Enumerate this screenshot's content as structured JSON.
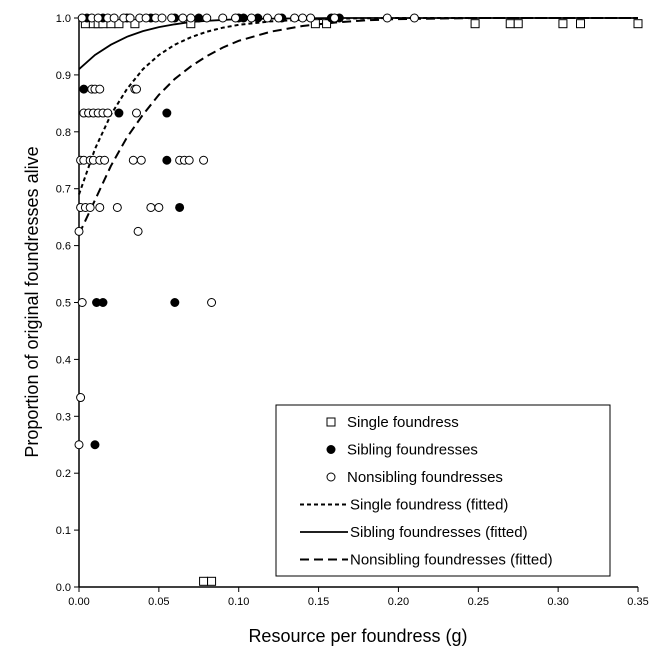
{
  "chart_data": {
    "type": "scatter",
    "title": "",
    "xlabel": "Resource per foundress (g)",
    "ylabel": "Proportion of original foundresses alive",
    "xlim": [
      0,
      0.35
    ],
    "ylim": [
      0,
      1.0
    ],
    "xticks": [
      "0.00",
      "0.05",
      "0.10",
      "0.15",
      "0.20",
      "0.25",
      "0.30",
      "0.35"
    ],
    "yticks": [
      "0.0",
      "0.1",
      "0.2",
      "0.3",
      "0.4",
      "0.5",
      "0.6",
      "0.7",
      "0.8",
      "0.9",
      "1.0"
    ],
    "grid": false,
    "legend_position": "bottom-right",
    "series": [
      {
        "name": "Single foundress",
        "marker": "open-square",
        "points": [
          [
            0.004,
            0.99
          ],
          [
            0.009,
            0.99
          ],
          [
            0.012,
            0.99
          ],
          [
            0.015,
            0.99
          ],
          [
            0.02,
            0.99
          ],
          [
            0.025,
            0.99
          ],
          [
            0.035,
            0.99
          ],
          [
            0.07,
            0.99
          ],
          [
            0.148,
            0.99
          ],
          [
            0.155,
            0.99
          ],
          [
            0.248,
            0.99
          ],
          [
            0.27,
            0.99
          ],
          [
            0.275,
            0.99
          ],
          [
            0.303,
            0.99
          ],
          [
            0.314,
            0.99
          ],
          [
            0.35,
            0.99
          ],
          [
            0.078,
            0.01
          ],
          [
            0.083,
            0.01
          ]
        ]
      },
      {
        "name": "Sibling foundresses",
        "marker": "filled-circle",
        "points": [
          [
            0.005,
            1.0
          ],
          [
            0.015,
            1.0
          ],
          [
            0.03,
            1.0
          ],
          [
            0.045,
            1.0
          ],
          [
            0.06,
            1.0
          ],
          [
            0.075,
            1.0
          ],
          [
            0.1,
            1.0
          ],
          [
            0.103,
            1.0
          ],
          [
            0.112,
            1.0
          ],
          [
            0.127,
            1.0
          ],
          [
            0.158,
            1.0
          ],
          [
            0.163,
            1.0
          ],
          [
            0.003,
            0.875
          ],
          [
            0.055,
            0.833
          ],
          [
            0.025,
            0.833
          ],
          [
            0.055,
            0.75
          ],
          [
            0.063,
            0.667
          ],
          [
            0.011,
            0.5
          ],
          [
            0.015,
            0.5
          ],
          [
            0.06,
            0.5
          ],
          [
            0.01,
            0.25
          ]
        ]
      },
      {
        "name": "Nonsibling foundresses",
        "marker": "open-circle",
        "points": [
          [
            0.002,
            1.0
          ],
          [
            0.008,
            1.0
          ],
          [
            0.012,
            1.0
          ],
          [
            0.018,
            1.0
          ],
          [
            0.022,
            1.0
          ],
          [
            0.028,
            1.0
          ],
          [
            0.032,
            1.0
          ],
          [
            0.038,
            1.0
          ],
          [
            0.042,
            1.0
          ],
          [
            0.048,
            1.0
          ],
          [
            0.052,
            1.0
          ],
          [
            0.058,
            1.0
          ],
          [
            0.065,
            1.0
          ],
          [
            0.07,
            1.0
          ],
          [
            0.08,
            1.0
          ],
          [
            0.09,
            1.0
          ],
          [
            0.098,
            1.0
          ],
          [
            0.108,
            1.0
          ],
          [
            0.118,
            1.0
          ],
          [
            0.125,
            1.0
          ],
          [
            0.135,
            1.0
          ],
          [
            0.14,
            1.0
          ],
          [
            0.145,
            1.0
          ],
          [
            0.16,
            1.0
          ],
          [
            0.193,
            1.0
          ],
          [
            0.21,
            1.0
          ],
          [
            0.008,
            0.875
          ],
          [
            0.01,
            0.875
          ],
          [
            0.013,
            0.875
          ],
          [
            0.035,
            0.875
          ],
          [
            0.036,
            0.875
          ],
          [
            0.003,
            0.833
          ],
          [
            0.006,
            0.833
          ],
          [
            0.009,
            0.833
          ],
          [
            0.012,
            0.833
          ],
          [
            0.015,
            0.833
          ],
          [
            0.018,
            0.833
          ],
          [
            0.036,
            0.833
          ],
          [
            0.001,
            0.75
          ],
          [
            0.003,
            0.75
          ],
          [
            0.007,
            0.75
          ],
          [
            0.009,
            0.75
          ],
          [
            0.013,
            0.75
          ],
          [
            0.016,
            0.75
          ],
          [
            0.034,
            0.75
          ],
          [
            0.039,
            0.75
          ],
          [
            0.063,
            0.75
          ],
          [
            0.066,
            0.75
          ],
          [
            0.069,
            0.75
          ],
          [
            0.078,
            0.75
          ],
          [
            0.001,
            0.667
          ],
          [
            0.004,
            0.667
          ],
          [
            0.007,
            0.667
          ],
          [
            0.013,
            0.667
          ],
          [
            0.024,
            0.667
          ],
          [
            0.045,
            0.667
          ],
          [
            0.05,
            0.667
          ],
          [
            0.0,
            0.625
          ],
          [
            0.037,
            0.625
          ],
          [
            0.002,
            0.5
          ],
          [
            0.083,
            0.5
          ],
          [
            0.001,
            0.333
          ],
          [
            0.0,
            0.25
          ]
        ]
      },
      {
        "name": "Single foundress (fitted)",
        "line": "short-dash",
        "points": [
          [
            0.0,
            0.69
          ],
          [
            0.01,
            0.77
          ],
          [
            0.02,
            0.83
          ],
          [
            0.03,
            0.875
          ],
          [
            0.04,
            0.91
          ],
          [
            0.05,
            0.935
          ],
          [
            0.06,
            0.953
          ],
          [
            0.07,
            0.966
          ],
          [
            0.08,
            0.976
          ],
          [
            0.09,
            0.983
          ],
          [
            0.1,
            0.988
          ],
          [
            0.12,
            0.994
          ],
          [
            0.14,
            0.997
          ],
          [
            0.16,
            0.999
          ],
          [
            0.2,
            1.0
          ],
          [
            0.35,
            1.0
          ]
        ]
      },
      {
        "name": "Sibling foundresses (fitted)",
        "line": "solid",
        "points": [
          [
            0.0,
            0.91
          ],
          [
            0.01,
            0.935
          ],
          [
            0.02,
            0.953
          ],
          [
            0.03,
            0.967
          ],
          [
            0.04,
            0.977
          ],
          [
            0.05,
            0.984
          ],
          [
            0.06,
            0.989
          ],
          [
            0.07,
            0.993
          ],
          [
            0.08,
            0.995
          ],
          [
            0.1,
            0.998
          ],
          [
            0.12,
            0.999
          ],
          [
            0.16,
            1.0
          ],
          [
            0.35,
            1.0
          ]
        ]
      },
      {
        "name": "Nonsibling foundresses (fitted)",
        "line": "long-dash",
        "points": [
          [
            0.0,
            0.62
          ],
          [
            0.01,
            0.68
          ],
          [
            0.02,
            0.74
          ],
          [
            0.03,
            0.79
          ],
          [
            0.04,
            0.83
          ],
          [
            0.05,
            0.865
          ],
          [
            0.06,
            0.893
          ],
          [
            0.07,
            0.915
          ],
          [
            0.08,
            0.933
          ],
          [
            0.09,
            0.948
          ],
          [
            0.1,
            0.96
          ],
          [
            0.12,
            0.976
          ],
          [
            0.14,
            0.986
          ],
          [
            0.16,
            0.992
          ],
          [
            0.18,
            0.996
          ],
          [
            0.2,
            0.998
          ],
          [
            0.25,
            1.0
          ],
          [
            0.35,
            1.0
          ]
        ]
      }
    ]
  }
}
